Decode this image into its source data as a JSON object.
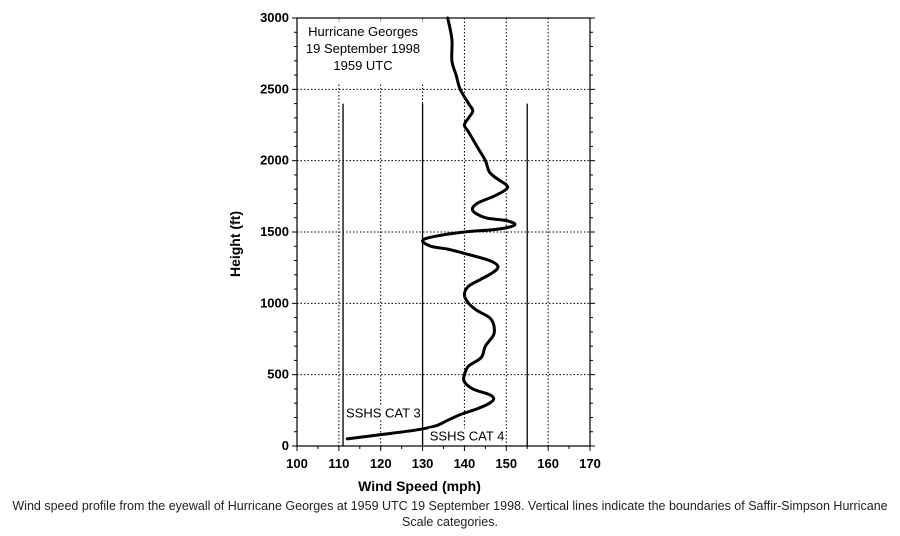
{
  "chart_data": {
    "type": "line",
    "xlabel": "Wind Speed (mph)",
    "ylabel": "Height (ft)",
    "xlim": [
      100,
      170
    ],
    "ylim": [
      0,
      3000
    ],
    "xticks": [
      100,
      110,
      120,
      130,
      140,
      150,
      160,
      170
    ],
    "yticks": [
      0,
      500,
      1000,
      1500,
      2000,
      2500,
      3000
    ],
    "grid": "dotted",
    "title_lines": [
      "Hurricane Georges",
      "19 September 1998",
      "1959 UTC"
    ],
    "category_lines": [
      111,
      130,
      155
    ],
    "annotations": [
      {
        "text": "SSHS CAT 3",
        "x": 111,
        "y": 200
      },
      {
        "text": "SSHS CAT 4",
        "x": 131,
        "y": 40
      }
    ],
    "series": [
      {
        "x": [
          112,
          120,
          128,
          133,
          136,
          139,
          143,
          146,
          147,
          146,
          142,
          140,
          140,
          141,
          144,
          145,
          147,
          147,
          146,
          143,
          141,
          140,
          141,
          144,
          147,
          148,
          146,
          140,
          136,
          132,
          130,
          133,
          140,
          148,
          152,
          150,
          145,
          142,
          143,
          147,
          150,
          150,
          148,
          146,
          145,
          143,
          141,
          140,
          141,
          142,
          141,
          139,
          138,
          137,
          137,
          136
        ],
        "y": [
          50,
          80,
          110,
          140,
          180,
          220,
          260,
          300,
          330,
          360,
          400,
          450,
          500,
          560,
          620,
          700,
          780,
          850,
          900,
          950,
          1000,
          1060,
          1120,
          1170,
          1220,
          1260,
          1300,
          1350,
          1380,
          1400,
          1440,
          1470,
          1500,
          1520,
          1550,
          1580,
          1600,
          1650,
          1700,
          1750,
          1800,
          1830,
          1870,
          1920,
          2000,
          2100,
          2200,
          2250,
          2300,
          2350,
          2400,
          2500,
          2600,
          2700,
          2850,
          3000
        ]
      }
    ]
  },
  "caption": "Wind speed profile from the eyewall of Hurricane Georges at 1959 UTC 19 September 1998. Vertical lines indicate the boundaries of Saffir-Simpson Hurricane Scale categories."
}
